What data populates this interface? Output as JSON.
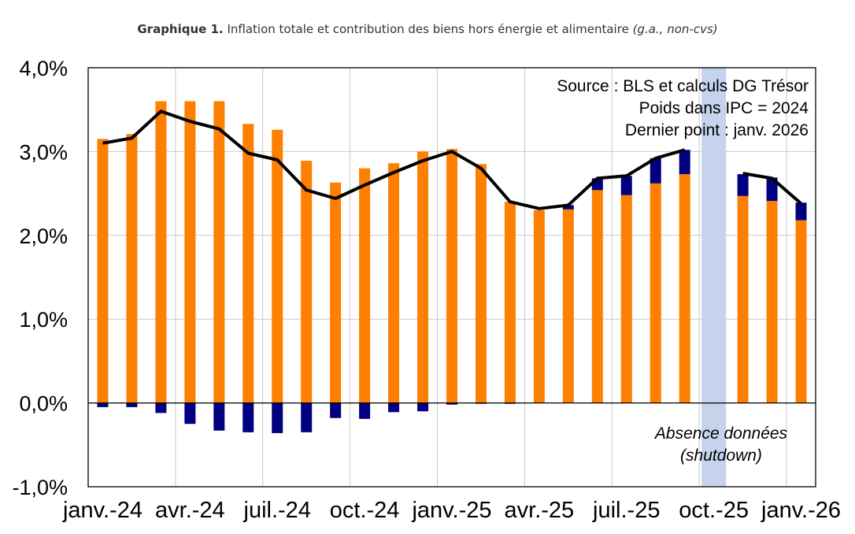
{
  "title": {
    "bold": "Graphique 1.",
    "main": "Inflation totale et contribution des biens hors énergie et alimentaire",
    "italic": "(g.a., non-cvs)"
  },
  "chart_data": {
    "type": "bar",
    "stacked": true,
    "months": [
      "janv.-24",
      "févr.-24",
      "mars-24",
      "avr.-24",
      "mai-24",
      "juin-24",
      "juil.-24",
      "août-24",
      "sept.-24",
      "oct.-24",
      "nov.-24",
      "déc.-24",
      "janv.-25",
      "févr.-25",
      "mars-25",
      "avr.-25",
      "mai-25",
      "juin-25",
      "juil.-25",
      "août-25",
      "sept.-25",
      "oct.-25",
      "nov.-25",
      "déc.-25",
      "janv.-26"
    ],
    "xtick_labels": [
      "janv.-24",
      "avr.-24",
      "juil.-24",
      "oct.-24",
      "janv.-25",
      "avr.-25",
      "juil.-25",
      "oct.-25",
      "janv.-26"
    ],
    "ytick_labels": [
      "4,0%",
      "3,0%",
      "2,0%",
      "1,0%",
      "0,0%",
      "-1,0%"
    ],
    "ylim": [
      -1.0,
      4.0
    ],
    "series": [
      {
        "name": "",
        "color": "#FF7F00",
        "values": [
          3.15,
          3.21,
          3.6,
          3.6,
          3.6,
          3.33,
          3.26,
          2.89,
          2.63,
          2.8,
          2.86,
          3.0,
          3.03,
          2.85,
          2.4,
          2.3,
          2.31,
          2.54,
          2.48,
          2.62,
          2.73,
          null,
          2.47,
          2.41,
          2.18
        ]
      },
      {
        "name": "",
        "color": "#000080",
        "values": [
          -0.05,
          -0.05,
          -0.12,
          -0.25,
          -0.33,
          -0.35,
          -0.36,
          -0.35,
          -0.18,
          -0.19,
          -0.11,
          -0.1,
          -0.02,
          -0.01,
          -0.01,
          0.0,
          0.05,
          0.14,
          0.23,
          0.3,
          0.29,
          null,
          0.26,
          0.28,
          0.21
        ]
      }
    ],
    "line": {
      "name": "",
      "color": "#000000",
      "values": [
        3.1,
        3.16,
        3.48,
        3.36,
        3.27,
        2.98,
        2.9,
        2.54,
        2.44,
        2.6,
        2.75,
        2.89,
        3.0,
        2.8,
        2.4,
        2.32,
        2.36,
        2.68,
        2.71,
        2.92,
        3.02,
        null,
        2.74,
        2.68,
        2.38
      ]
    },
    "shutdown_month": "oct.-25",
    "shutdown_color": "#C5D3EC",
    "notes": [
      "Source : BLS et calculs DG Trésor",
      "Poids dans IPC = 2024",
      "Dernier point : janv. 2026"
    ],
    "shutdown_label": [
      "Absence données",
      "(shutdown)"
    ],
    "grid": true
  }
}
